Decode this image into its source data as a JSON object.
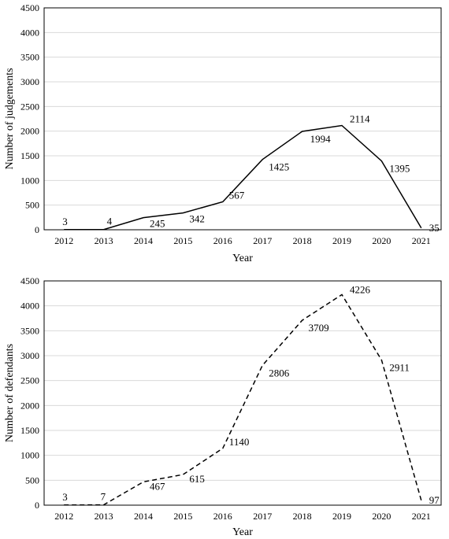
{
  "chart_data": [
    {
      "type": "line",
      "title": "",
      "xlabel": "Year",
      "ylabel": "Number of judgements",
      "ylim": [
        0,
        4500
      ],
      "yticks": [
        "0",
        "500",
        "1000",
        "1500",
        "2000",
        "2500",
        "3000",
        "3500",
        "4000",
        "4500"
      ],
      "categories": [
        "2012",
        "2013",
        "2014",
        "2015",
        "2016",
        "2017",
        "2018",
        "2019",
        "2020",
        "2021"
      ],
      "values": [
        3,
        4,
        245,
        342,
        567,
        1425,
        1994,
        2114,
        1395,
        35
      ],
      "line_style": "solid",
      "grid": "horizontal",
      "legend": "none"
    },
    {
      "type": "line",
      "title": "",
      "xlabel": "Year",
      "ylabel": "Number of defendants",
      "ylim": [
        0,
        4500
      ],
      "yticks": [
        "0",
        "500",
        "1000",
        "1500",
        "2000",
        "2500",
        "3000",
        "3500",
        "4000",
        "4500"
      ],
      "categories": [
        "2012",
        "2013",
        "2014",
        "2015",
        "2016",
        "2017",
        "2018",
        "2019",
        "2020",
        "2021"
      ],
      "values": [
        3,
        7,
        467,
        615,
        1140,
        2806,
        3709,
        4226,
        2911,
        97
      ],
      "line_style": "dashed",
      "grid": "horizontal",
      "legend": "none"
    }
  ]
}
